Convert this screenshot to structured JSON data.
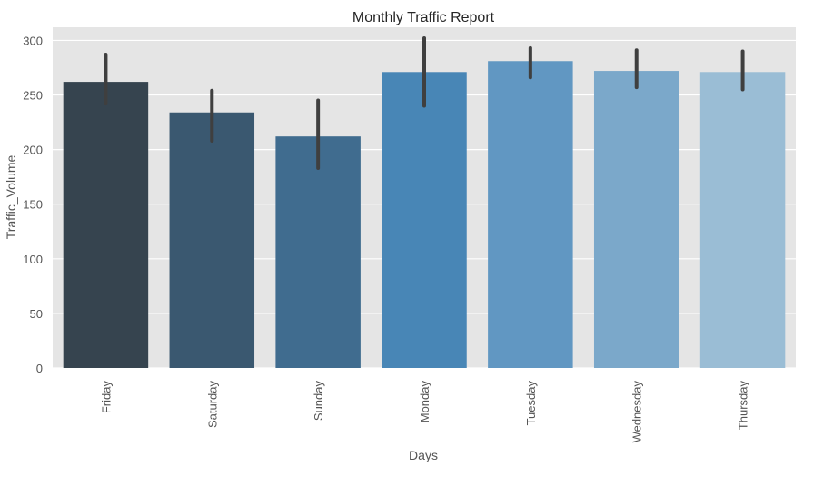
{
  "chart_data": {
    "type": "bar",
    "title": "Monthly Traffic Report",
    "xlabel": "Days",
    "ylabel": "Traffic_Volume",
    "categories": [
      "Friday",
      "Saturday",
      "Sunday",
      "Monday",
      "Tuesday",
      "Wednesday",
      "Thursday"
    ],
    "values": [
      262,
      234,
      212,
      271,
      281,
      272,
      271
    ],
    "error_low": [
      242,
      208,
      183,
      240,
      266,
      257,
      255
    ],
    "error_high": [
      287,
      254,
      245,
      302,
      293,
      291,
      290
    ],
    "ylim": [
      0,
      312
    ],
    "yticks": [
      0,
      50,
      100,
      150,
      200,
      250,
      300
    ],
    "grid": true,
    "colors": [
      "#36444f",
      "#3a5870",
      "#406c8f",
      "#4886b6",
      "#6197c2",
      "#7ba8ca",
      "#9abdd5"
    ],
    "error_color": "#3f3f3f",
    "background": "#e5e5e5"
  }
}
